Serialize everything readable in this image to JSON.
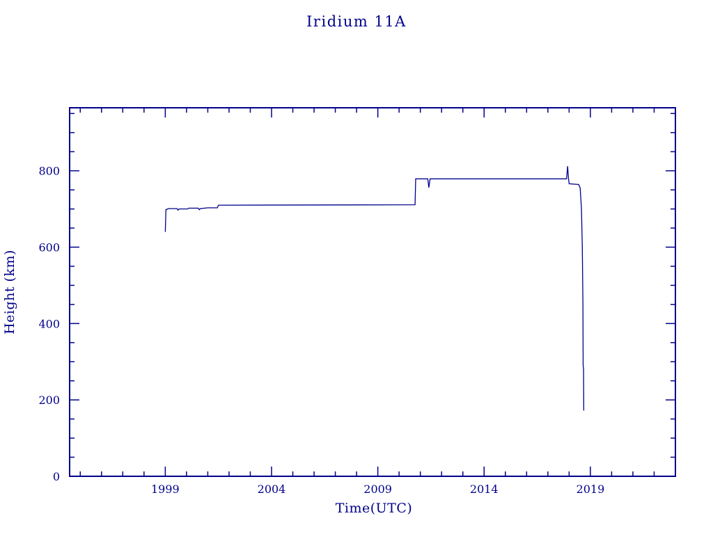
{
  "page": {
    "background": "#ffffff",
    "accent_color": "#00008b"
  },
  "chart_data": {
    "type": "line",
    "title": "Iridium 11A",
    "xlabel": "Time(UTC)",
    "ylabel": "Height (km)",
    "xlim": [
      1994.5,
      2023.0
    ],
    "ylim": [
      0,
      965
    ],
    "x_major_ticks": [
      1999,
      2004,
      2009,
      2014,
      2019
    ],
    "x_tick_labels": [
      "1999",
      "2004",
      "2009",
      "2014",
      "2019"
    ],
    "x_minor_step": 1,
    "y_major_ticks": [
      0,
      200,
      400,
      600,
      800
    ],
    "y_tick_labels": [
      "0",
      "200",
      "400",
      "600",
      "800"
    ],
    "y_minor_step": 50,
    "grid": false,
    "legend": "none",
    "line_color": "#00008b",
    "frame_color": "#00008b",
    "series": [
      {
        "name": "orbital-height-km",
        "points": [
          [
            1999.0,
            640
          ],
          [
            1999.03,
            698
          ],
          [
            1999.15,
            701
          ],
          [
            1999.55,
            701
          ],
          [
            1999.6,
            697
          ],
          [
            1999.65,
            700
          ],
          [
            2000.05,
            700
          ],
          [
            2000.1,
            702
          ],
          [
            2000.55,
            702
          ],
          [
            2000.6,
            698
          ],
          [
            2000.65,
            701
          ],
          [
            2001.0,
            703
          ],
          [
            2001.45,
            703
          ],
          [
            2001.5,
            710
          ],
          [
            2010.75,
            711
          ],
          [
            2010.78,
            779
          ],
          [
            2011.35,
            779
          ],
          [
            2011.4,
            756
          ],
          [
            2011.46,
            779
          ],
          [
            2017.88,
            779
          ],
          [
            2017.93,
            812
          ],
          [
            2017.97,
            779
          ],
          [
            2018.0,
            766
          ],
          [
            2018.45,
            764
          ],
          [
            2018.52,
            755
          ],
          [
            2018.58,
            700
          ],
          [
            2018.62,
            600
          ],
          [
            2018.65,
            450
          ],
          [
            2018.66,
            290
          ],
          [
            2018.68,
            280
          ],
          [
            2018.69,
            172
          ]
        ]
      }
    ]
  }
}
